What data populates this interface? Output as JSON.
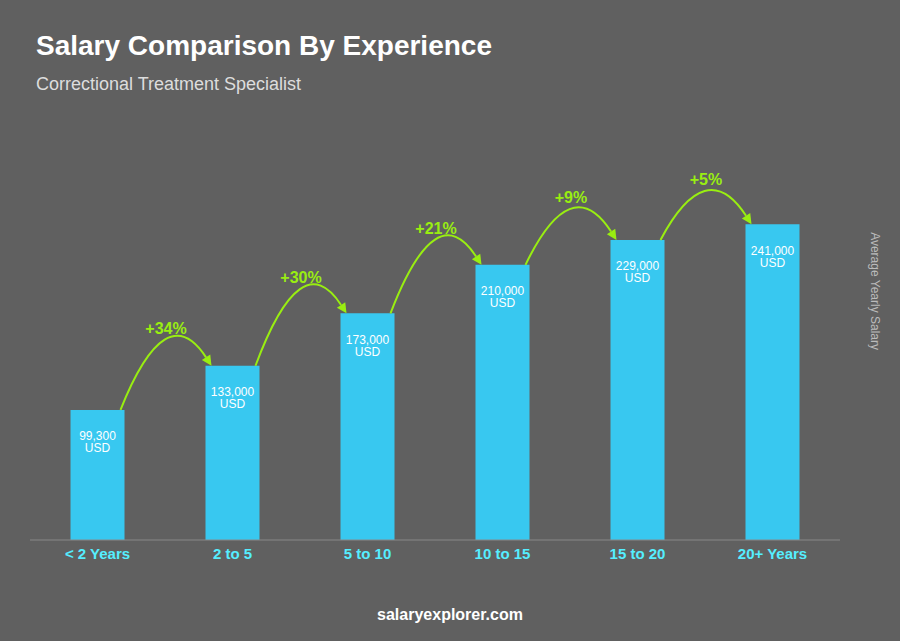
{
  "chart_data": {
    "type": "bar",
    "title": "Salary Comparison By Experience",
    "subtitle": "Correctional Treatment Specialist",
    "categories": [
      "< 2 Years",
      "2 to 5",
      "5 to 10",
      "10 to 15",
      "15 to 20",
      "20+ Years"
    ],
    "values": [
      99300,
      133000,
      173000,
      210000,
      229000,
      241000
    ],
    "value_labels": [
      "99,300 USD",
      "133,000 USD",
      "173,000 USD",
      "210,000 USD",
      "229,000 USD",
      "241,000 USD"
    ],
    "data_labels": true,
    "color": "#38c8f0",
    "ylabel": "Average Yearly Salary",
    "ylim": [
      0,
      290000
    ],
    "tick_labels": "x",
    "grid": false,
    "annotations": [
      {
        "text": "+34%",
        "from": "< 2 Years",
        "to": "2 to 5",
        "color": "#99ee11"
      },
      {
        "text": "+30%",
        "from": "2 to 5",
        "to": "5 to 10",
        "color": "#99ee11"
      },
      {
        "text": "+21%",
        "from": "5 to 10",
        "to": "10 to 15",
        "color": "#99ee11"
      },
      {
        "text": "+9%",
        "from": "10 to 15",
        "to": "15 to 20",
        "color": "#99ee11"
      },
      {
        "text": "+5%",
        "from": "15 to 20",
        "to": "20+ Years",
        "color": "#99ee11"
      }
    ],
    "footer": "salaryexplorer.com"
  }
}
